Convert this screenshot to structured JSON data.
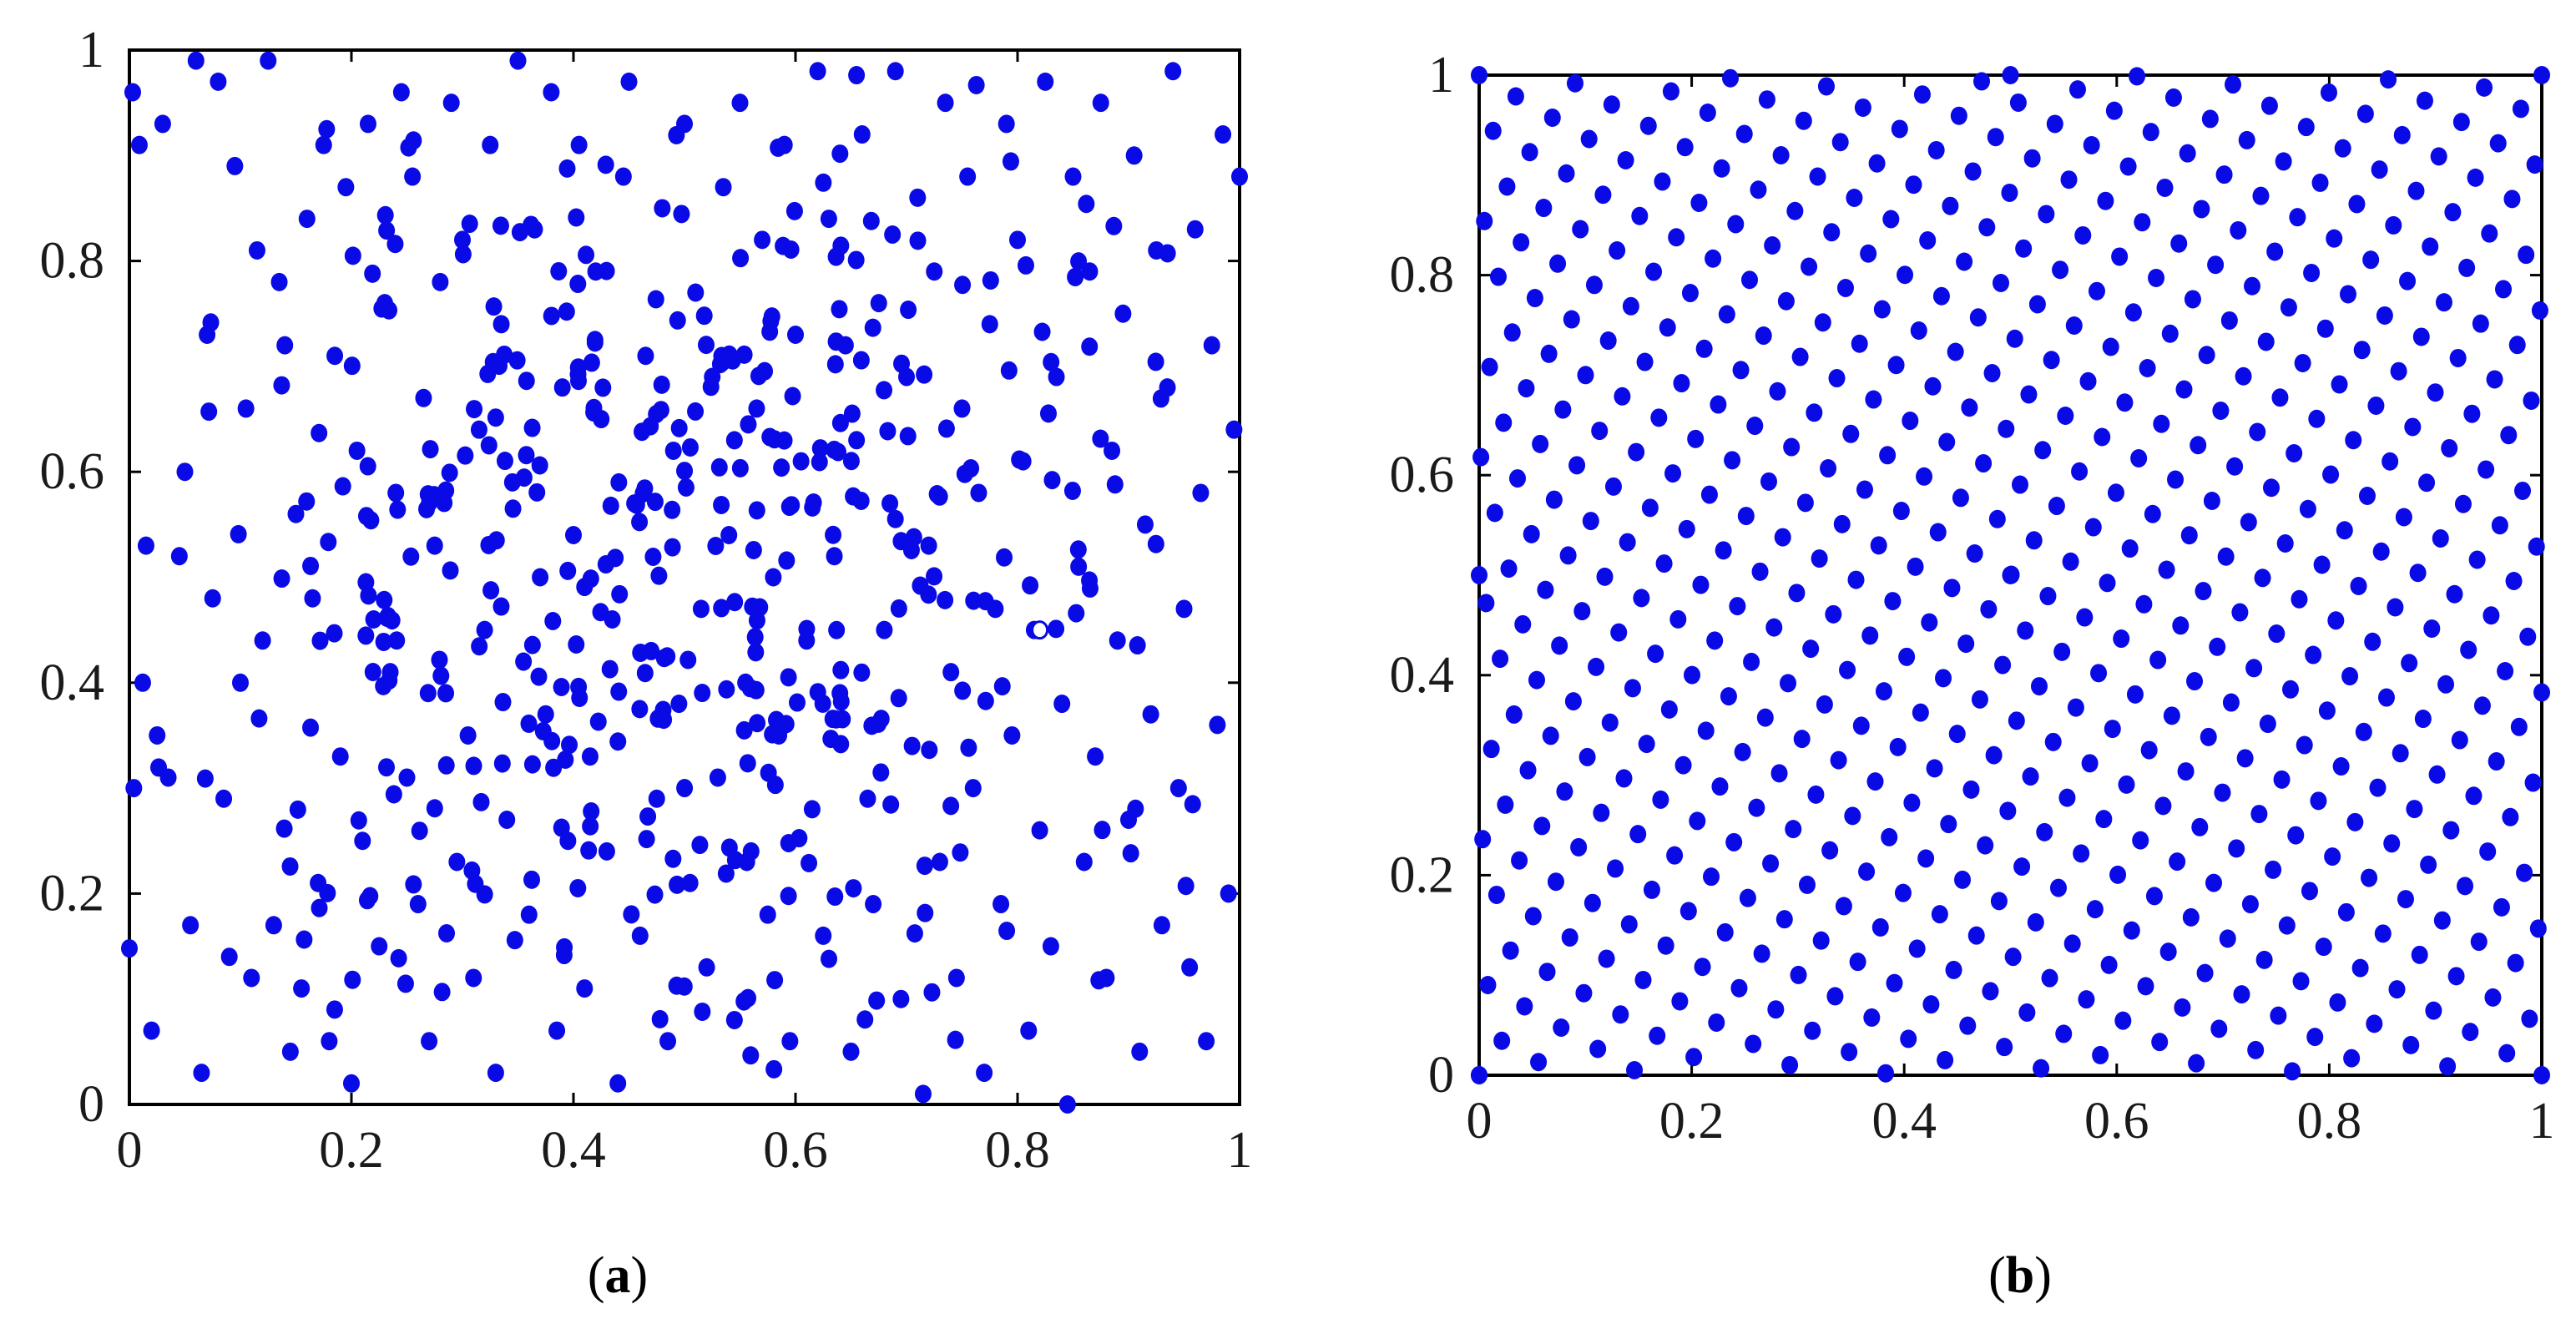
{
  "colors": {
    "point": "#0a0ae6",
    "axis": "#000000"
  },
  "panels": [
    {
      "caption_open": "(",
      "caption_letter": "a",
      "caption_close": ")"
    },
    {
      "caption_open": "(",
      "caption_letter": "b",
      "caption_close": ")"
    }
  ],
  "chart_data": [
    {
      "type": "scatter",
      "title": "",
      "xlabel": "",
      "ylabel": "",
      "xlim": [
        0,
        1
      ],
      "ylim": [
        0,
        1
      ],
      "xticks": [
        "0",
        "0.2",
        "0.4",
        "0.6",
        "0.8",
        "1"
      ],
      "yticks": [
        "0",
        "0.2",
        "0.4",
        "0.6",
        "0.8",
        "1"
      ],
      "grid": false,
      "legend": "none",
      "points_x": [
        0.003,
        0.004,
        0.009,
        0.012,
        0.015,
        0.02,
        0.025,
        0.03,
        0.035,
        0.045,
        0.05,
        0.055,
        0.06,
        0.065,
        0.07,
        0.075,
        0.08,
        0.085,
        0.09,
        0.095,
        0.1,
        0.105,
        0.11,
        0.115,
        0.12,
        0.125,
        0.13,
        0.135,
        0.14,
        0.145,
        0.15,
        0.155,
        0.16,
        0.165,
        0.17,
        0.175,
        0.18,
        0.185,
        0.19,
        0.195,
        0.2,
        0.205,
        0.21,
        0.215,
        0.22,
        0.225,
        0.23,
        0.235,
        0.24,
        0.245,
        0.25,
        0.255,
        0.26,
        0.265,
        0.27,
        0.275,
        0.28,
        0.285,
        0.29,
        0.295,
        0.3,
        0.305,
        0.31,
        0.315,
        0.32,
        0.325,
        0.33,
        0.335,
        0.34,
        0.345,
        0.35,
        0.355,
        0.36,
        0.365,
        0.37,
        0.375,
        0.38,
        0.385,
        0.39,
        0.395,
        0.4,
        0.405,
        0.41,
        0.415,
        0.42,
        0.425,
        0.43,
        0.435,
        0.44,
        0.445,
        0.45,
        0.455,
        0.46,
        0.465,
        0.47,
        0.475,
        0.48,
        0.485,
        0.49,
        0.495,
        0.5,
        0.505,
        0.51,
        0.515,
        0.52,
        0.525,
        0.53,
        0.535,
        0.54,
        0.545,
        0.55,
        0.555,
        0.56,
        0.565,
        0.57,
        0.575,
        0.58,
        0.585,
        0.59,
        0.595,
        0.6,
        0.605,
        0.61,
        0.615,
        0.62,
        0.625,
        0.63,
        0.635,
        0.64,
        0.645,
        0.65,
        0.655,
        0.66,
        0.665,
        0.67,
        0.675,
        0.68,
        0.685,
        0.69,
        0.695,
        0.7,
        0.705,
        0.71,
        0.715,
        0.72,
        0.725,
        0.73,
        0.735,
        0.74,
        0.745,
        0.75,
        0.755,
        0.76,
        0.765,
        0.77,
        0.775,
        0.78,
        0.785,
        0.79,
        0.795,
        0.8,
        0.805,
        0.81,
        0.815,
        0.82,
        0.825,
        0.83,
        0.835,
        0.84,
        0.845,
        0.85,
        0.855,
        0.86,
        0.865,
        0.87,
        0.875,
        0.88,
        0.885,
        0.89,
        0.895,
        0.9,
        0.905,
        0.91,
        0.915,
        0.92,
        0.925,
        0.93,
        0.935,
        0.94,
        0.945,
        0.95,
        0.955,
        0.96,
        0.965,
        0.97,
        0.975,
        0.98,
        0.985,
        0.99,
        0.995,
        1.0
      ],
      "points_y": [
        0.96,
        0.3,
        0.91,
        0.4,
        0.53,
        0.07,
        0.35,
        0.93,
        0.31,
        0.52,
        0.6,
        0.17,
        0.99,
        0.03,
        0.73,
        0.48,
        0.97,
        0.29,
        0.14,
        0.89,
        0.4,
        0.66,
        0.12,
        0.81,
        0.44,
        0.99,
        0.17,
        0.78,
        0.72,
        0.05,
        0.56,
        0.11,
        0.84,
        0.48,
        0.21,
        0.91,
        0.06,
        0.71,
        0.33,
        0.87,
        0.02,
        0.62,
        0.25,
        0.93,
        0.46,
        0.15,
        0.76,
        0.41,
        0.58,
        0.96,
        0.31,
        0.88,
        0.19,
        0.67,
        0.06,
        0.53,
        0.78,
        0.39,
        0.95,
        0.23,
        0.82,
        0.35,
        0.12,
        0.64,
        0.45,
        0.91,
        0.03,
        0.74,
        0.27,
        0.59,
        0.99,
        0.42,
        0.18,
        0.83,
        0.5,
        0.37,
        0.96,
        0.07,
        0.68,
        0.25,
        0.54,
        0.91,
        0.11,
        0.33,
        0.79,
        0.65,
        0.24,
        0.46,
        0.02,
        0.88,
        0.97,
        0.57,
        0.16,
        0.71,
        0.43,
        0.29,
        0.85,
        0.06,
        0.62,
        0.38,
        0.93,
        0.21,
        0.77,
        0.47,
        0.13,
        0.69,
        0.31,
        0.87,
        0.54,
        0.08,
        0.95,
        0.4,
        0.24,
        0.66,
        0.82,
        0.18,
        0.5,
        0.35,
        0.91,
        0.06,
        0.73,
        0.61,
        0.44,
        0.28,
        0.98,
        0.16,
        0.84,
        0.52,
        0.39,
        0.72,
        0.05,
        0.63,
        0.92,
        0.29,
        0.19,
        0.76,
        0.45,
        0.57,
        0.98,
        0.1,
        0.69,
        0.34,
        0.86,
        0.01,
        0.53,
        0.79,
        0.23,
        0.95,
        0.41,
        0.12,
        0.66,
        0.88,
        0.3,
        0.58,
        0.03,
        0.74,
        0.47,
        0.19,
        0.93,
        0.35,
        0.82,
        0.61,
        0.07,
        0.45,
        0.26,
        0.97,
        0.15,
        0.69,
        0.38,
        0.0,
        0.88,
        0.51,
        0.23,
        0.79,
        0.33,
        0.95,
        0.12,
        0.62,
        0.44,
        0.75,
        0.27,
        0.9,
        0.05,
        0.55,
        0.37,
        0.81,
        0.17,
        0.68,
        0.98,
        0.3,
        0.47,
        0.13,
        0.83,
        0.58,
        0.06,
        0.72,
        0.36,
        0.92,
        0.2,
        0.64,
        0.88
      ],
      "hollow_point": [
        0.82,
        0.45
      ]
    },
    {
      "type": "scatter",
      "title": "",
      "xlabel": "",
      "ylabel": "",
      "xlim": [
        0,
        1
      ],
      "ylim": [
        0,
        1
      ],
      "xticks": [
        "0",
        "0.2",
        "0.4",
        "0.6",
        "0.8",
        "1"
      ],
      "yticks": [
        "0",
        "0.2",
        "0.4",
        "0.6",
        "0.8",
        "1"
      ],
      "grid": false,
      "legend": "none",
      "lattice_n": 610,
      "lattice_ratio": 0.618034,
      "corner_points": [
        [
          0,
          0
        ],
        [
          0,
          1
        ],
        [
          1,
          0
        ],
        [
          1,
          1
        ],
        [
          0,
          0.5
        ],
        [
          0.5,
          0.5
        ],
        [
          0.5,
          1
        ]
      ]
    }
  ]
}
